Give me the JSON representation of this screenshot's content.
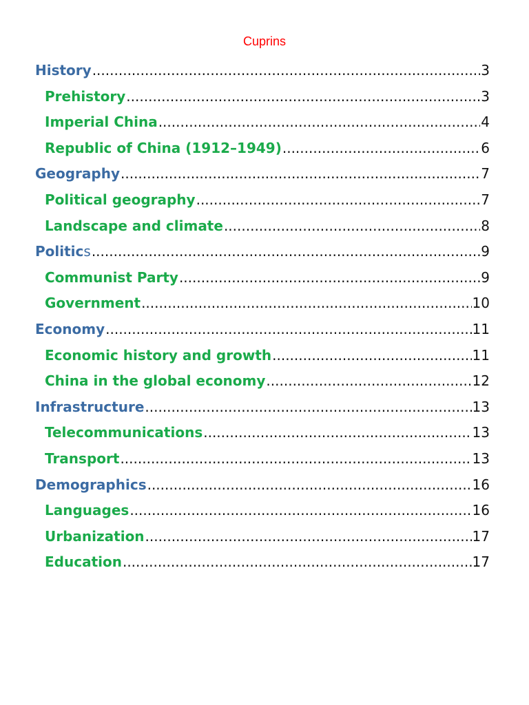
{
  "document": {
    "title": "Cuprins",
    "entries": [
      {
        "title": "History",
        "page": "3",
        "level": 1
      },
      {
        "title": "Prehistory",
        "page": "3",
        "level": 2
      },
      {
        "title": "Imperial China",
        "page": "4",
        "level": 2
      },
      {
        "title": "Republic of China (1912–1949)",
        "page": "6",
        "level": 2
      },
      {
        "title": "Geography",
        "page": "7",
        "level": 1
      },
      {
        "title": "Political geography",
        "page": "7",
        "level": 2
      },
      {
        "title": "Landscape and climate",
        "page": "8",
        "level": 2
      },
      {
        "title": "Politic",
        "title_tail": "s",
        "page": "9",
        "level": 1
      },
      {
        "title": "Communist Party",
        "page": "9",
        "level": 2
      },
      {
        "title": "Government",
        "page": "10",
        "level": 2
      },
      {
        "title": "Economy",
        "page": "11",
        "level": 1
      },
      {
        "title": "Economic history and growth",
        "page": "11",
        "level": 2
      },
      {
        "title": "China in the global economy",
        "page": "12",
        "level": 2
      },
      {
        "title": "Infrastructure",
        "page": "13",
        "level": 1
      },
      {
        "title": "Telecommunications",
        "page": "13",
        "level": 2
      },
      {
        "title": "Transport",
        "page": "13",
        "level": 2
      },
      {
        "title": "Demographics",
        "page": "16",
        "level": 1
      },
      {
        "title": "Languages",
        "page": "16",
        "level": 2
      },
      {
        "title": "Urbanization",
        "page": "17",
        "level": 2
      },
      {
        "title": "Education",
        "page": "17",
        "level": 2
      }
    ]
  },
  "colors": {
    "title": "#ff0000",
    "level1": "#3b6ba3",
    "level2": "#1aaa4a",
    "text": "#111111"
  }
}
